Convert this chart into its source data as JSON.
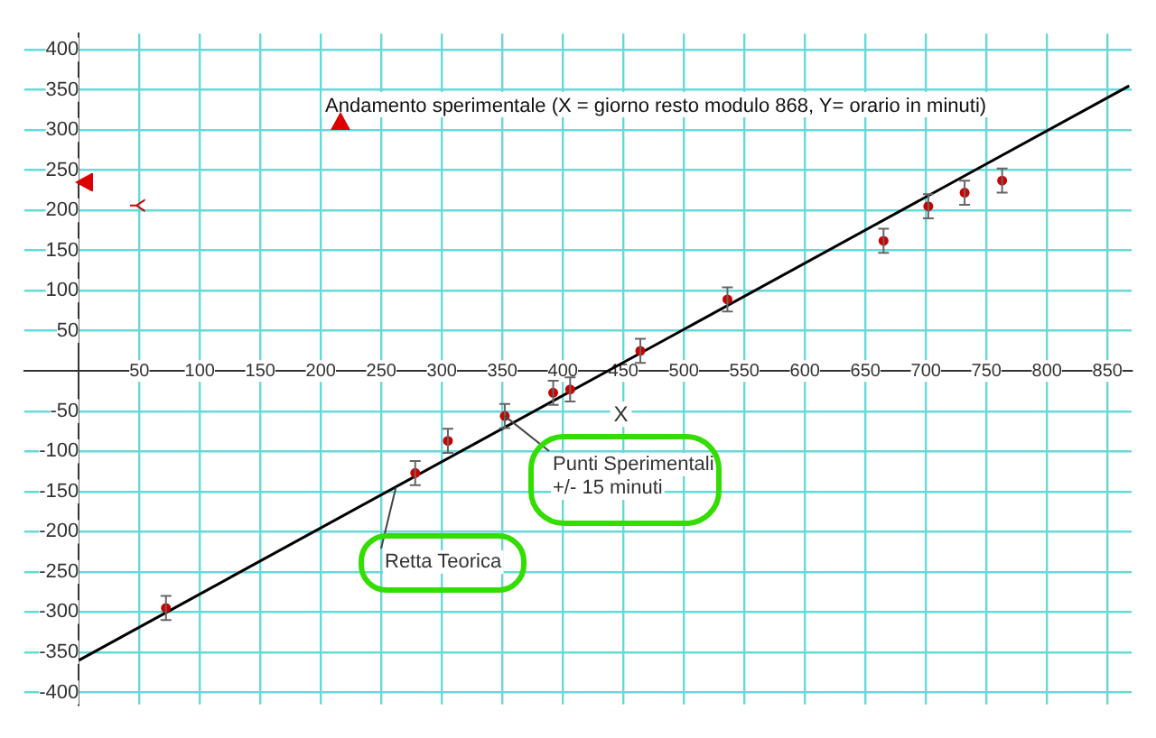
{
  "chart_data": {
    "type": "scatter",
    "title": "Andamento sperimentale (X = giorno resto modulo 868, Y= orario in minuti)",
    "xlabel": "X",
    "ylabel": "Y",
    "xlim": [
      -45,
      870
    ],
    "ylim": [
      -415,
      420
    ],
    "xticks": [
      50,
      100,
      150,
      200,
      250,
      300,
      350,
      400,
      450,
      500,
      550,
      600,
      650,
      700,
      750,
      800,
      850
    ],
    "yticks": [
      -400,
      -350,
      -300,
      -250,
      -200,
      -150,
      -100,
      -50,
      50,
      100,
      150,
      200,
      250,
      300,
      350,
      400
    ],
    "grid": true,
    "series": [
      {
        "type": "scatter",
        "marker": "circle",
        "color": "#cc0000",
        "x": [
          72,
          278,
          305,
          352,
          392,
          406,
          464,
          536,
          665,
          702,
          732,
          763
        ],
        "values": [
          -295,
          -127,
          -87,
          -56,
          -27,
          -23,
          25,
          89,
          162,
          205,
          222,
          237
        ],
        "errors": [
          15,
          15,
          15,
          15,
          15,
          15,
          15,
          15,
          15,
          15,
          15,
          15
        ]
      },
      {
        "type": "line",
        "color": "#000000",
        "x": [
          0,
          868
        ],
        "values": [
          -360,
          355
        ]
      }
    ],
    "annotations": [
      {
        "text": "Punti Sperimentali\n+/- 15 minuti",
        "x": 352,
        "y": -56
      },
      {
        "text": "Retta Teorica",
        "x": 262,
        "y": -145
      }
    ]
  }
}
